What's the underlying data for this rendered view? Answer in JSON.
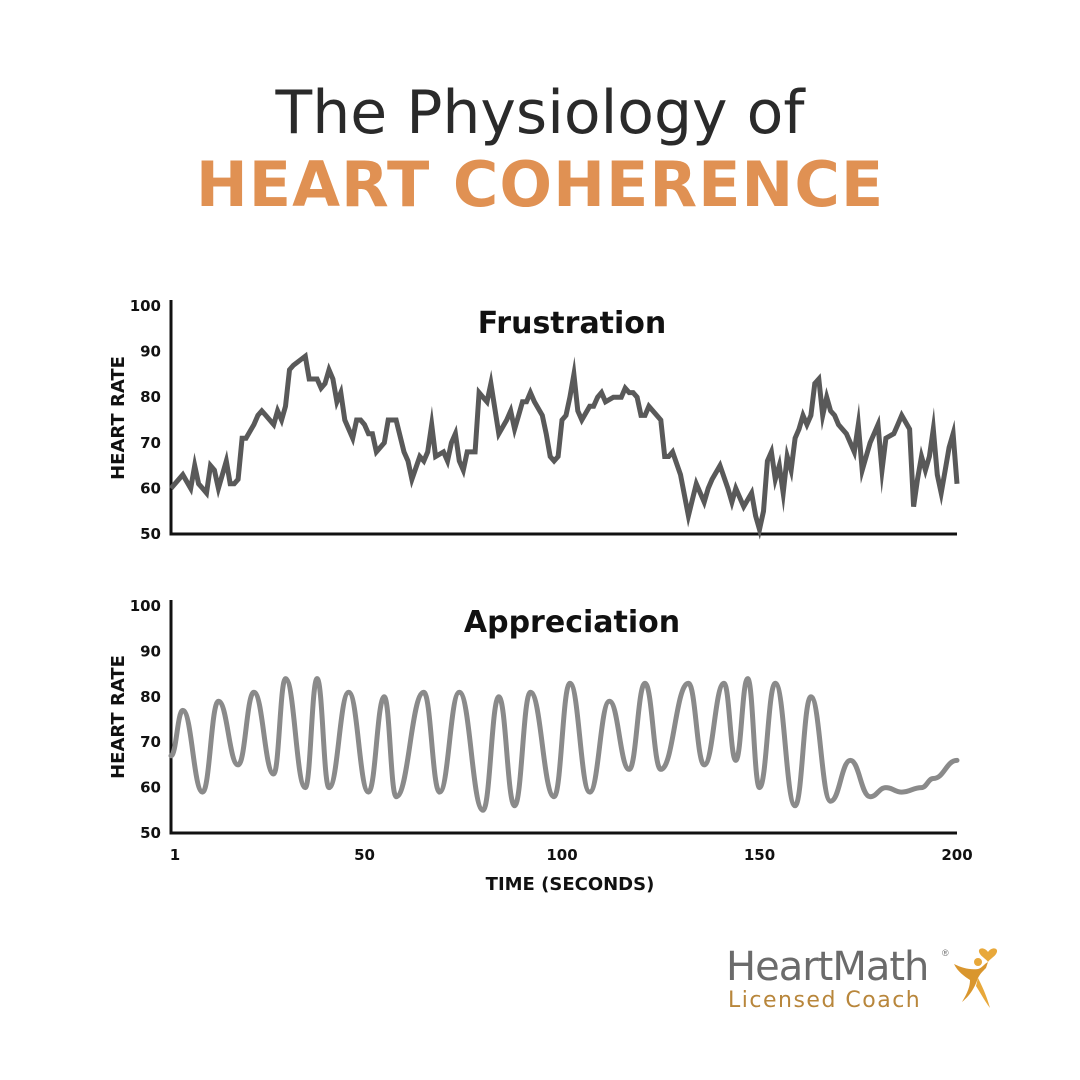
{
  "header": {
    "title_line1": "The Physiology of",
    "title_line2": "HEART COHERENCE"
  },
  "colors": {
    "accent": "#e09153",
    "frustration_line": "#595959",
    "appreciation_line": "#8a8a8a",
    "axis": "#111111",
    "logo_text": "#6b6b6b",
    "logo_sub": "#b8863b",
    "logo_gold": "#e8a83a"
  },
  "chart_data": [
    {
      "type": "line",
      "title": "Frustration",
      "ylabel": "HEART RATE",
      "xlabel": "",
      "ylim": [
        50,
        100
      ],
      "yticks": [
        100,
        90,
        80,
        70,
        60,
        50
      ],
      "xlim": [
        1,
        200
      ],
      "grid": false,
      "series": [
        {
          "name": "Frustration",
          "x": [
            1,
            4,
            6,
            7,
            8,
            9,
            10,
            11,
            12,
            13,
            15,
            16,
            17,
            18,
            19,
            20,
            22,
            23,
            24,
            25,
            27,
            28,
            29,
            30,
            31,
            32,
            35,
            36,
            38,
            39,
            40,
            41,
            42,
            43,
            44,
            45,
            47,
            48,
            49,
            50,
            51,
            52,
            53,
            55,
            56,
            58,
            60,
            61,
            62,
            64,
            65,
            66,
            67,
            68,
            70,
            71,
            72,
            73,
            74,
            75,
            76,
            78,
            79,
            80,
            81,
            82,
            84,
            86,
            87,
            88,
            89,
            90,
            91,
            92,
            93,
            95,
            96,
            97,
            98,
            99,
            100,
            101,
            102,
            103,
            104,
            105,
            107,
            108,
            109,
            110,
            111,
            113,
            114,
            115,
            116,
            117,
            118,
            119,
            120,
            121,
            122,
            123,
            124,
            125,
            126,
            127,
            128,
            130,
            132,
            134,
            136,
            137,
            138,
            140,
            142,
            143,
            144,
            146,
            148,
            149,
            150,
            151,
            152,
            153,
            154,
            155,
            156,
            157,
            158,
            159,
            160,
            161,
            162,
            163,
            164,
            165,
            166,
            167,
            168,
            169,
            170,
            172,
            174,
            175,
            176,
            178,
            180,
            181,
            182,
            184,
            185,
            186,
            188,
            189,
            190,
            191,
            192,
            193,
            194,
            195,
            196,
            197,
            198,
            199,
            200
          ],
          "values": [
            60,
            63,
            60,
            65,
            61,
            60,
            59,
            65,
            64,
            60,
            66,
            61,
            61,
            62,
            71,
            71,
            74,
            76,
            77,
            76,
            74,
            77,
            75,
            78,
            86,
            87,
            89,
            84,
            84,
            82,
            83,
            86,
            84,
            79,
            81,
            75,
            71,
            75,
            75,
            74,
            72,
            72,
            68,
            70,
            75,
            75,
            68,
            66,
            62,
            67,
            66,
            68,
            74,
            67,
            68,
            66,
            70,
            72,
            66,
            64,
            68,
            68,
            81,
            80,
            79,
            83,
            72,
            75,
            77,
            73,
            76,
            79,
            79,
            81,
            79,
            76,
            72,
            67,
            66,
            67,
            75,
            76,
            80,
            85,
            77,
            75,
            78,
            78,
            80,
            81,
            79,
            80,
            80,
            80,
            82,
            81,
            81,
            80,
            76,
            76,
            78,
            77,
            76,
            75,
            67,
            67,
            68,
            63,
            54,
            61,
            57,
            60,
            62,
            65,
            60,
            57,
            60,
            56,
            59,
            54,
            51,
            55,
            66,
            68,
            62,
            65,
            59,
            67,
            64,
            71,
            73,
            76,
            74,
            76,
            83,
            84,
            76,
            80,
            77,
            76,
            74,
            72,
            68,
            74,
            64,
            70,
            74,
            64,
            71,
            72,
            74,
            76,
            73,
            56,
            62,
            67,
            64,
            67,
            73,
            63,
            59,
            64,
            69,
            72,
            61
          ]
        }
      ]
    },
    {
      "type": "line",
      "title": "Appreciation",
      "ylabel": "HEART RATE",
      "xlabel": "TIME (SECONDS)",
      "ylim": [
        50,
        100
      ],
      "yticks": [
        100,
        90,
        80,
        70,
        60,
        50
      ],
      "xlim": [
        1,
        200
      ],
      "xticks": [
        1,
        50,
        100,
        150,
        200
      ],
      "grid": false,
      "series": [
        {
          "name": "Appreciation",
          "x": [
            1,
            4,
            9,
            13,
            18,
            22,
            27,
            30,
            35,
            38,
            41,
            46,
            51,
            55,
            58,
            65,
            69,
            74,
            80,
            84,
            88,
            92,
            98,
            102,
            107,
            112,
            117,
            121,
            125,
            132,
            136,
            141,
            144,
            147,
            150,
            154,
            159,
            163,
            168,
            173,
            178,
            182,
            186,
            191,
            194,
            200
          ],
          "values": [
            67,
            77,
            59,
            79,
            65,
            81,
            63,
            84,
            60,
            84,
            60,
            81,
            59,
            80,
            58,
            81,
            59,
            81,
            55,
            80,
            56,
            81,
            58,
            83,
            59,
            79,
            64,
            83,
            64,
            83,
            65,
            83,
            66,
            84,
            60,
            83,
            56,
            80,
            57,
            66,
            58,
            60,
            59,
            60,
            62,
            66
          ]
        }
      ]
    }
  ],
  "logo": {
    "brand": "HeartMath",
    "registered": "®",
    "sub": "Licensed Coach"
  }
}
